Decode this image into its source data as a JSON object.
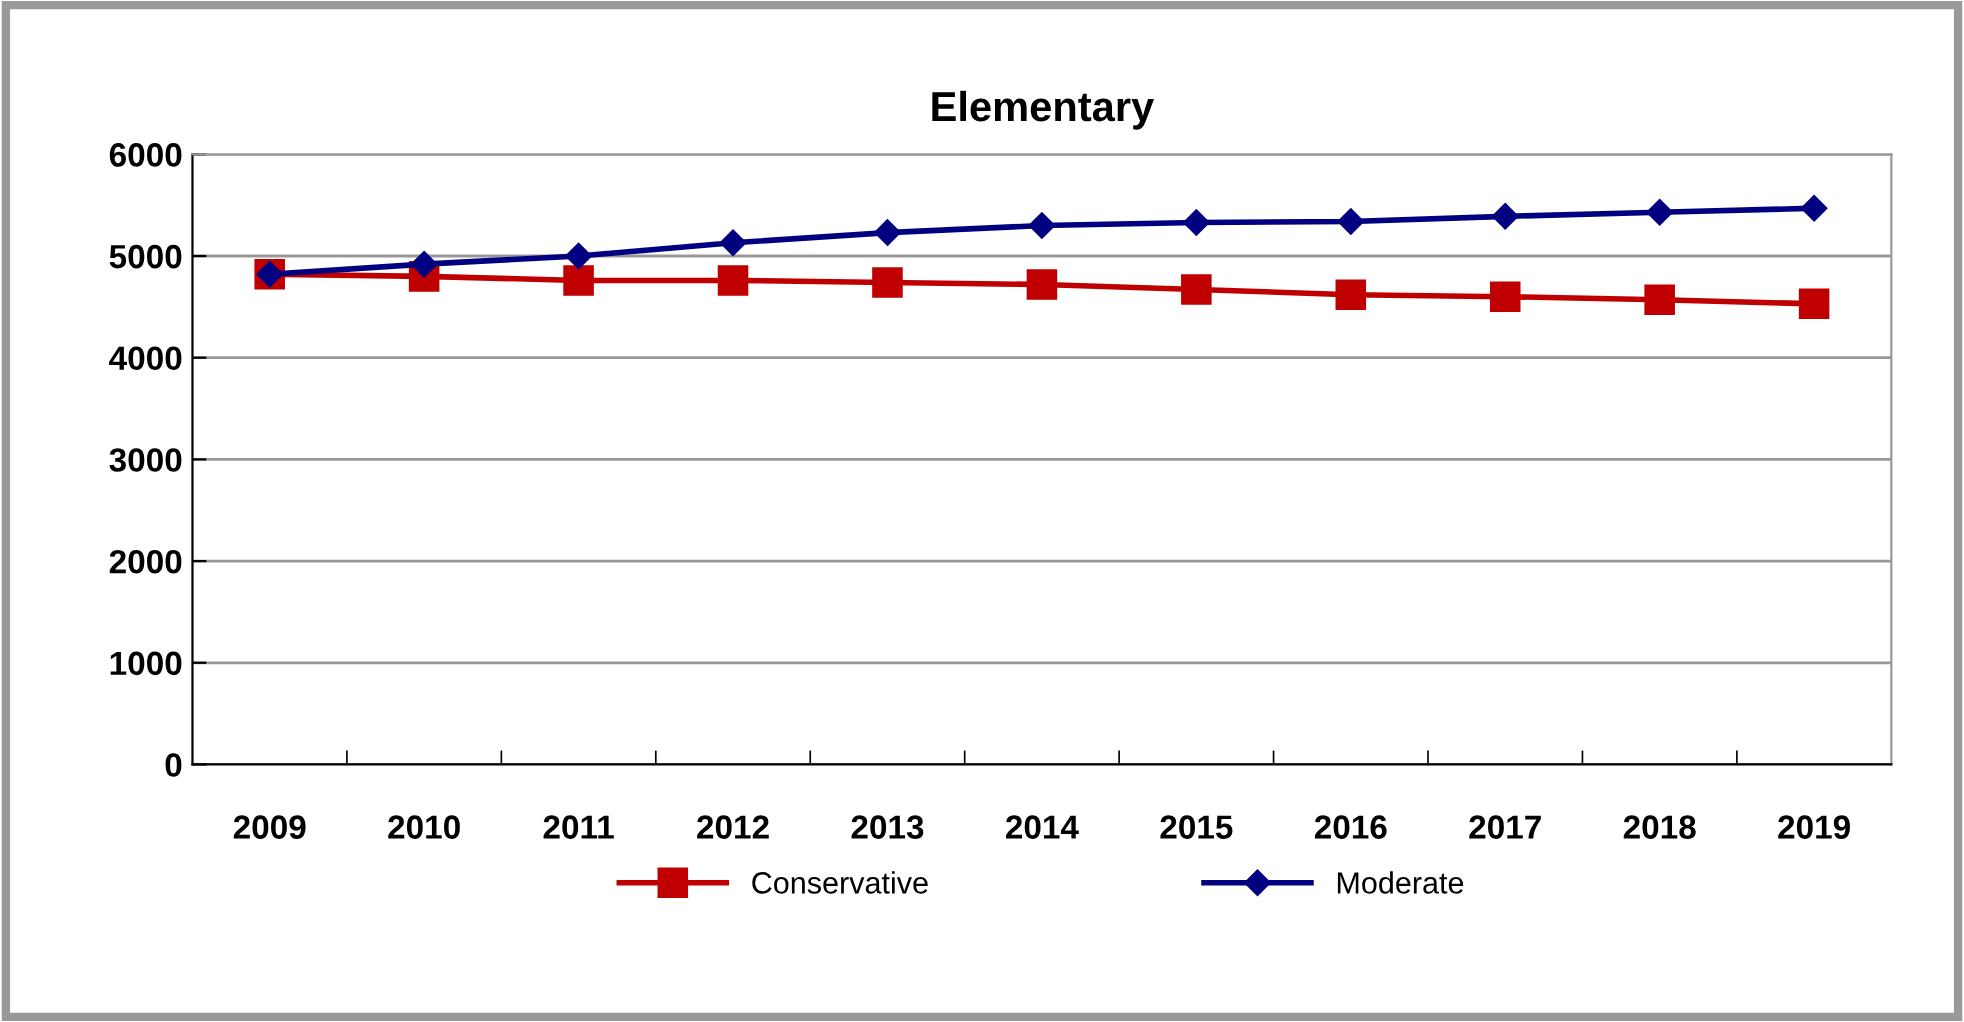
{
  "chart_data": {
    "type": "line",
    "title": "Elementary",
    "categories": [
      "2009",
      "2010",
      "2011",
      "2012",
      "2013",
      "2014",
      "2015",
      "2016",
      "2017",
      "2018",
      "2019"
    ],
    "series": [
      {
        "name": "Conservative",
        "color": "#c00000",
        "marker": "square",
        "values": [
          4820,
          4800,
          4760,
          4760,
          4740,
          4720,
          4670,
          4620,
          4600,
          4570,
          4530
        ]
      },
      {
        "name": "Moderate",
        "color": "#000080",
        "marker": "diamond",
        "values": [
          4820,
          4920,
          5000,
          5130,
          5230,
          5300,
          5330,
          5340,
          5390,
          5430,
          5470
        ]
      }
    ],
    "ylim": [
      0,
      6000
    ],
    "yticks": [
      0,
      1000,
      2000,
      3000,
      4000,
      5000,
      6000
    ],
    "grid": "y",
    "legend": "bottom",
    "line_style": "solid"
  }
}
